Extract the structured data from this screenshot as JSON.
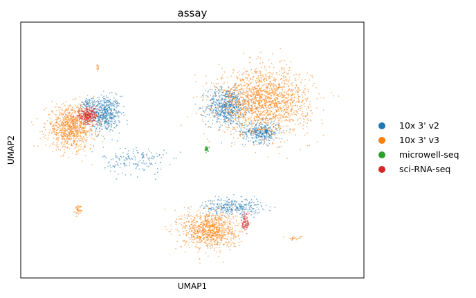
{
  "chart_data": {
    "type": "scatter",
    "title": "assay",
    "xlabel": "UMAP1",
    "ylabel": "UMAP2",
    "ticks": "none",
    "grid": false,
    "legend_position": "right",
    "series": [
      {
        "name": "10x 3' v2",
        "color": "#1f77b4"
      },
      {
        "name": "10x 3' v3",
        "color": "#ff7f0e"
      },
      {
        "name": "microwell-seq",
        "color": "#2ca02c"
      },
      {
        "name": "sci-RNA-seq",
        "color": "#d62728"
      }
    ],
    "clusters": [
      {
        "series": 0,
        "cx": -9.2,
        "cy": 3.3,
        "rx": 1.7,
        "ry": 1.9,
        "n": 520
      },
      {
        "series": 0,
        "cx": 3.6,
        "cy": 4.1,
        "rx": 2.1,
        "ry": 2.0,
        "n": 620
      },
      {
        "series": 0,
        "cx": 7.2,
        "cy": 1.4,
        "rx": 1.9,
        "ry": 1.1,
        "n": 360
      },
      {
        "series": 0,
        "cx": 4.2,
        "cy": -6.5,
        "rx": 3.1,
        "ry": 0.9,
        "n": 300
      },
      {
        "series": 0,
        "cx": -6.0,
        "cy": -1.6,
        "rx": 3.3,
        "ry": 1.5,
        "n": 160
      },
      {
        "series": 0,
        "cx": -10.9,
        "cy": 4.4,
        "rx": 0.7,
        "ry": 0.6,
        "n": 60
      },
      {
        "series": 1,
        "cx": -12.7,
        "cy": 1.9,
        "rx": 2.6,
        "ry": 2.3,
        "n": 900
      },
      {
        "series": 1,
        "cx": 7.5,
        "cy": 4.6,
        "rx": 4.8,
        "ry": 3.4,
        "n": 1700
      },
      {
        "series": 1,
        "cx": 1.8,
        "cy": -8.9,
        "rx": 2.9,
        "ry": 2.0,
        "n": 900
      },
      {
        "series": 1,
        "cx": -12.0,
        "cy": -6.8,
        "rx": 0.4,
        "ry": 0.5,
        "n": 40
      },
      {
        "series": 1,
        "cx": -9.9,
        "cy": 8.2,
        "rx": 0.15,
        "ry": 0.4,
        "n": 12
      },
      {
        "series": 1,
        "cx": 10.7,
        "cy": -9.8,
        "rx": 0.9,
        "ry": 0.2,
        "n": 25
      },
      {
        "series": 2,
        "cx": 1.5,
        "cy": -0.4,
        "rx": 0.25,
        "ry": 0.3,
        "n": 40
      },
      {
        "series": 3,
        "cx": -11.0,
        "cy": 3.1,
        "rx": 1.0,
        "ry": 0.9,
        "n": 260
      },
      {
        "series": 3,
        "cx": 5.6,
        "cy": -8.1,
        "rx": 0.4,
        "ry": 1.1,
        "n": 90
      }
    ],
    "xlim": [
      -18,
      18
    ],
    "ylim": [
      -14,
      13
    ]
  }
}
